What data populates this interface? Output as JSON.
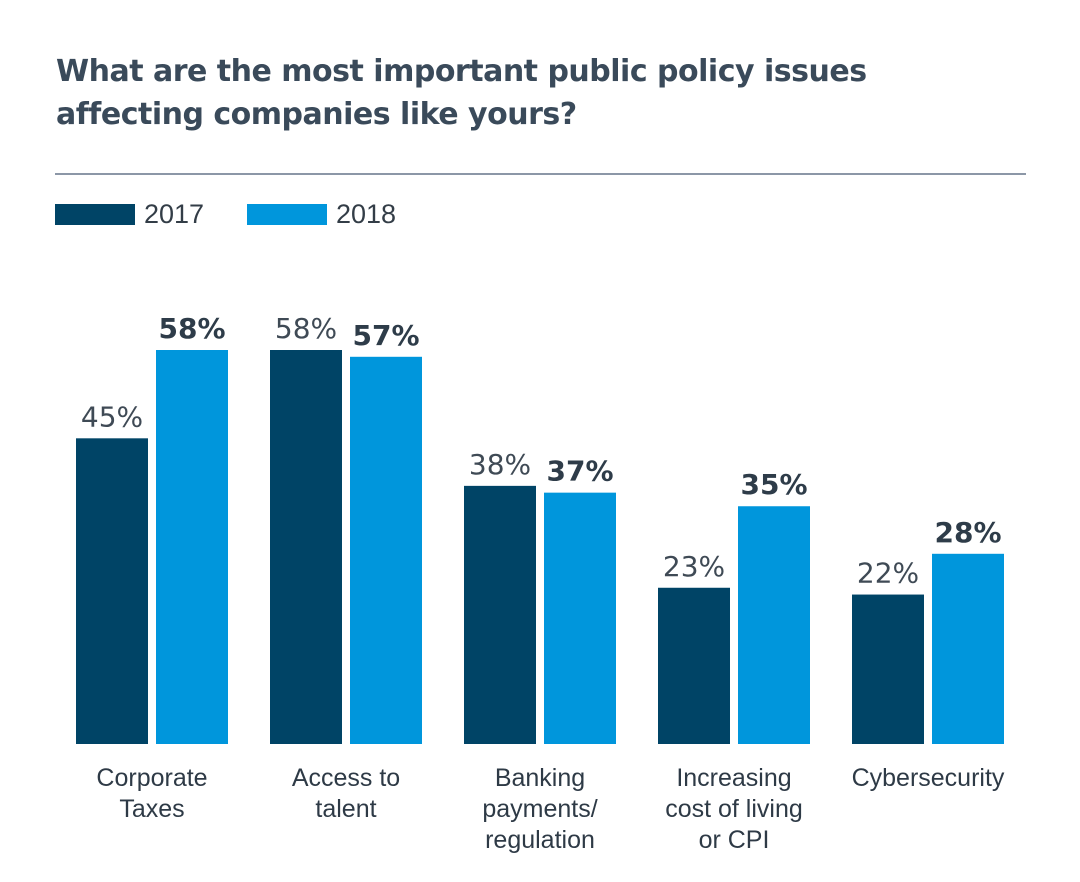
{
  "title_lines": [
    "What are the most important public policy issues",
    "affecting companies like yours?"
  ],
  "colors": {
    "s2017": "#004466",
    "s2018": "#0096dc",
    "title": "#3a4a5a",
    "rule": "#8c97a7"
  },
  "legend": [
    {
      "label": "2017",
      "color": "#004466"
    },
    {
      "label": "2018",
      "color": "#0096dc"
    }
  ],
  "chart_data": {
    "type": "bar",
    "title": "What are the most important public policy issues affecting companies like yours?",
    "xlabel": "",
    "ylabel": "",
    "ylim": [
      0,
      60
    ],
    "grid": false,
    "legend_position": "top-left",
    "categories": [
      [
        "Corporate",
        "Taxes"
      ],
      [
        "Access to",
        "talent"
      ],
      [
        "Banking",
        "payments/",
        "regulation"
      ],
      [
        "Increasing",
        "cost of living",
        "or CPI"
      ],
      [
        "Cybersecurity"
      ]
    ],
    "series": [
      {
        "name": "2017",
        "values": [
          45,
          58,
          38,
          23,
          22
        ],
        "labels": [
          "45%",
          "58%",
          "38%",
          "23%",
          "22%"
        ]
      },
      {
        "name": "2018",
        "values": [
          58,
          57,
          37,
          35,
          28
        ],
        "labels": [
          "58%",
          "57%",
          "37%",
          "35%",
          "28%"
        ]
      }
    ]
  }
}
